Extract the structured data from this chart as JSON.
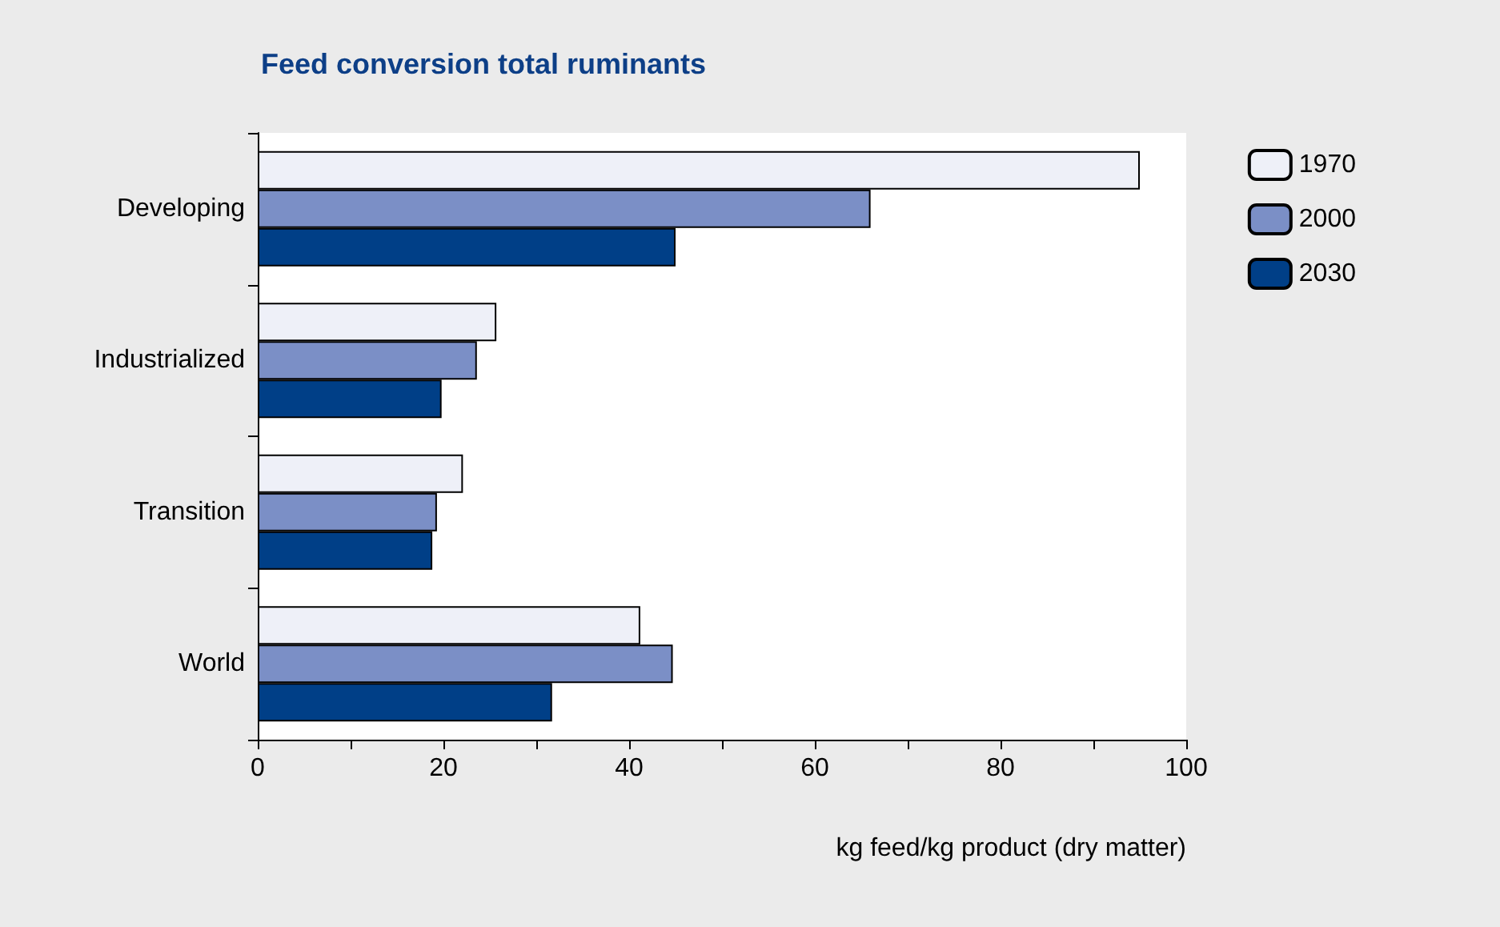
{
  "chart_data": {
    "type": "bar",
    "orientation": "horizontal",
    "title": "Feed conversion total ruminants",
    "xlabel": "kg feed/kg product (dry matter)",
    "categories": [
      "Developing",
      "Industrialized",
      "Transition",
      "World"
    ],
    "series": [
      {
        "name": "1970",
        "color": "#eef0f8",
        "values": [
          95,
          25.7,
          22.1,
          41.2
        ]
      },
      {
        "name": "2000",
        "color": "#7b8fc6",
        "values": [
          66,
          23.6,
          19.3,
          44.7
        ]
      },
      {
        "name": "2030",
        "color": "#003f87",
        "values": [
          45,
          19.8,
          18.8,
          31.7
        ]
      }
    ],
    "xlim": [
      0,
      100
    ],
    "xticks": [
      0,
      {
        "value": 10,
        "label": null
      },
      20,
      {
        "value": 30,
        "label": null
      },
      40,
      {
        "value": 50,
        "label": null
      },
      60,
      {
        "value": 70,
        "label": null
      },
      80,
      {
        "value": 90,
        "label": null
      },
      100
    ],
    "grid": false,
    "legend": "top right"
  }
}
